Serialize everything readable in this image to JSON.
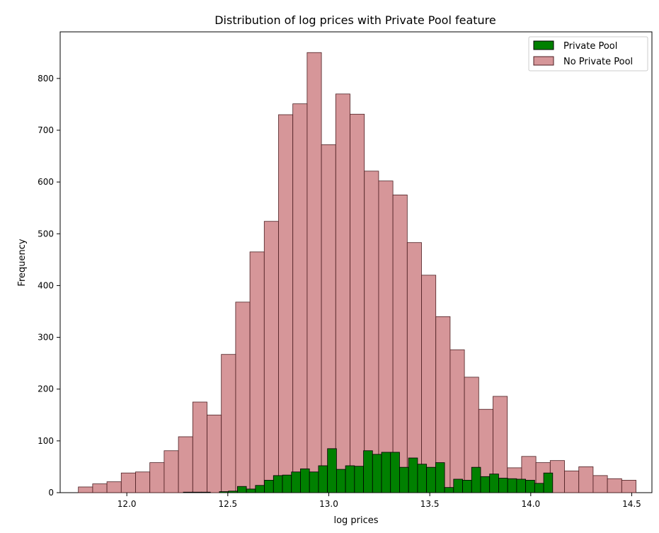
{
  "chart_data": {
    "type": "bar",
    "title": "Distribution of log prices with Private Pool feature",
    "xlabel": "log prices",
    "ylabel": "Frequency",
    "xlim": [
      11.67,
      14.6
    ],
    "ylim": [
      0,
      890
    ],
    "x_ticks": [
      {
        "value": 12.0,
        "label": "12.0"
      },
      {
        "value": 12.5,
        "label": "12.5"
      },
      {
        "value": 13.0,
        "label": "13.0"
      },
      {
        "value": 13.5,
        "label": "13.5"
      },
      {
        "value": 14.0,
        "label": "14.0"
      },
      {
        "value": 14.5,
        "label": "14.5"
      }
    ],
    "y_ticks": [
      {
        "value": 0,
        "label": "0"
      },
      {
        "value": 100,
        "label": "100"
      },
      {
        "value": 200,
        "label": "200"
      },
      {
        "value": 300,
        "label": "300"
      },
      {
        "value": 400,
        "label": "400"
      },
      {
        "value": 500,
        "label": "500"
      },
      {
        "value": 600,
        "label": "600"
      },
      {
        "value": 700,
        "label": "700"
      },
      {
        "value": 800,
        "label": "800"
      }
    ],
    "grid": false,
    "legend_position": "top-right",
    "series": [
      {
        "name": "No Private Pool",
        "color": "#c87377",
        "alpha": 0.75,
        "edgecolor": "#4d1f22",
        "bin_start": 11.76,
        "bin_width": 0.0708,
        "values": [
          11,
          17,
          21,
          38,
          40,
          58,
          81,
          108,
          175,
          150,
          267,
          368,
          465,
          524,
          730,
          751,
          850,
          672,
          770,
          731,
          621,
          602,
          575,
          483,
          420,
          340,
          276,
          223,
          161,
          186,
          48,
          70,
          58,
          62,
          42,
          50,
          33,
          27,
          24
        ]
      },
      {
        "name": "Private Pool",
        "color": "#008000",
        "alpha": 1.0,
        "edgecolor": "#000000",
        "bin_start": 12.28,
        "bin_width": 0.0446,
        "values": [
          1,
          1,
          1,
          0,
          2,
          3,
          12,
          7,
          14,
          24,
          33,
          34,
          40,
          46,
          40,
          52,
          85,
          45,
          52,
          51,
          81,
          74,
          78,
          78,
          49,
          67,
          55,
          49,
          58,
          10,
          26,
          24,
          49,
          31,
          36,
          28,
          27,
          26,
          24,
          18,
          38
        ]
      }
    ]
  }
}
